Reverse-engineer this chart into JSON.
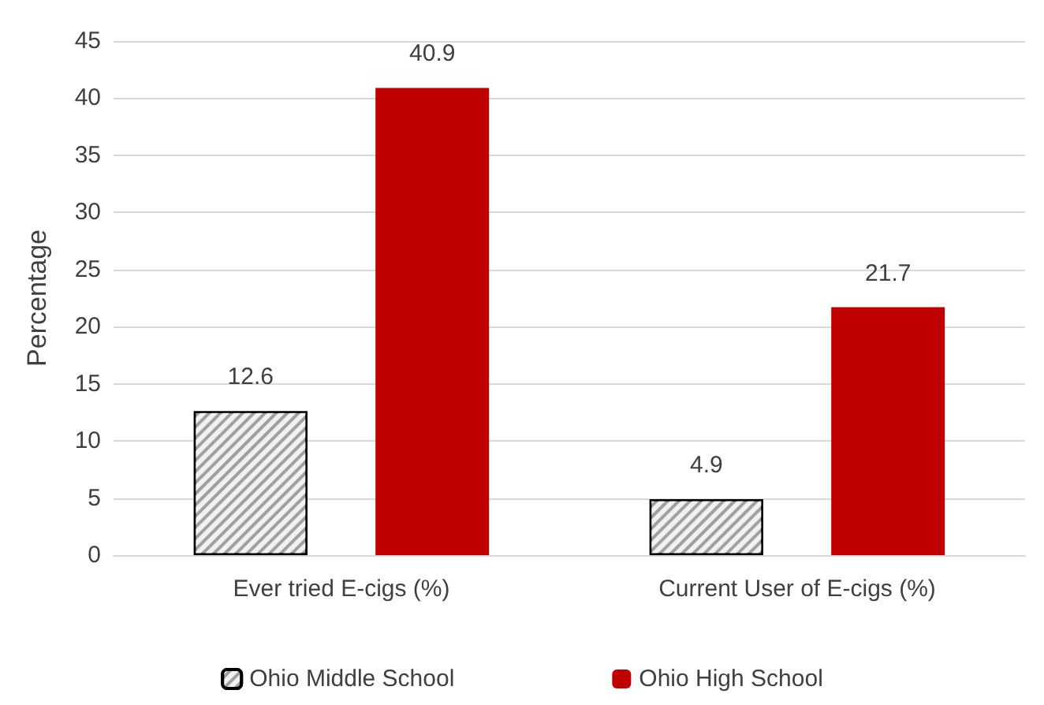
{
  "chart_data": {
    "type": "bar",
    "ylabel": "Percentage",
    "categories": [
      "Ever tried E-cigs (%)",
      "Current User of E-cigs (%)"
    ],
    "series": [
      {
        "name": "Ohio Middle School",
        "color": "#a0a0a0",
        "values": [
          12.6,
          4.9
        ]
      },
      {
        "name": "Ohio High School",
        "color": "#c00000",
        "values": [
          40.9,
          21.7
        ]
      }
    ],
    "ylim": [
      0,
      45
    ],
    "yticks": [
      0,
      5,
      10,
      15,
      20,
      25,
      30,
      35,
      40,
      45
    ],
    "grid": "y",
    "legend": "bottom",
    "data_labels": true
  }
}
